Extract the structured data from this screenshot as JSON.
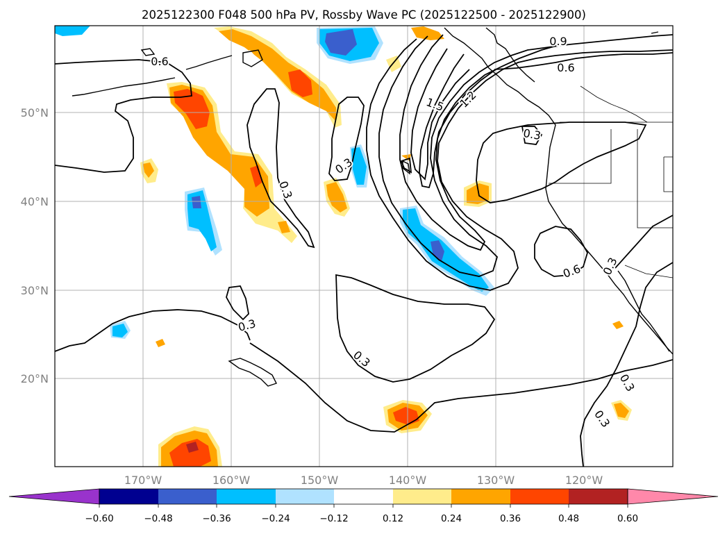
{
  "title": "2025122300 F048 500 hPa PV, Rossby Wave PC (2025122500 - 2025122900)",
  "map": {
    "lon_labels": [
      "170°W",
      "160°W",
      "150°W",
      "140°W",
      "130°W",
      "120°W"
    ],
    "lat_labels": [
      "50°N",
      "40°N",
      "30°N",
      "20°N"
    ],
    "grid_color": "#b0b0b0",
    "tick_label_color": "#808080",
    "coastline_color": "#000000",
    "contour_color": "#000000"
  },
  "contour_labels": [
    "0.6",
    "0.9",
    "0.6",
    "1.5",
    "1.2",
    "0.3",
    "0.3",
    "0.3",
    "0.3",
    "0.3",
    "0.6",
    "0.3",
    "0.3",
    "0.3"
  ],
  "colorbar": {
    "tick_labels": [
      "−0.60",
      "−0.48",
      "−0.36",
      "−0.24",
      "−0.12",
      "0.12",
      "0.24",
      "0.36",
      "0.48",
      "0.60"
    ],
    "colors": [
      "#9933cc",
      "#000090",
      "#3a5fcd",
      "#00bfff",
      "#b0e2ff",
      "#ffffff",
      "#ffec8b",
      "#ffa500",
      "#ff4500",
      "#b22222",
      "#ff88aa"
    ]
  }
}
